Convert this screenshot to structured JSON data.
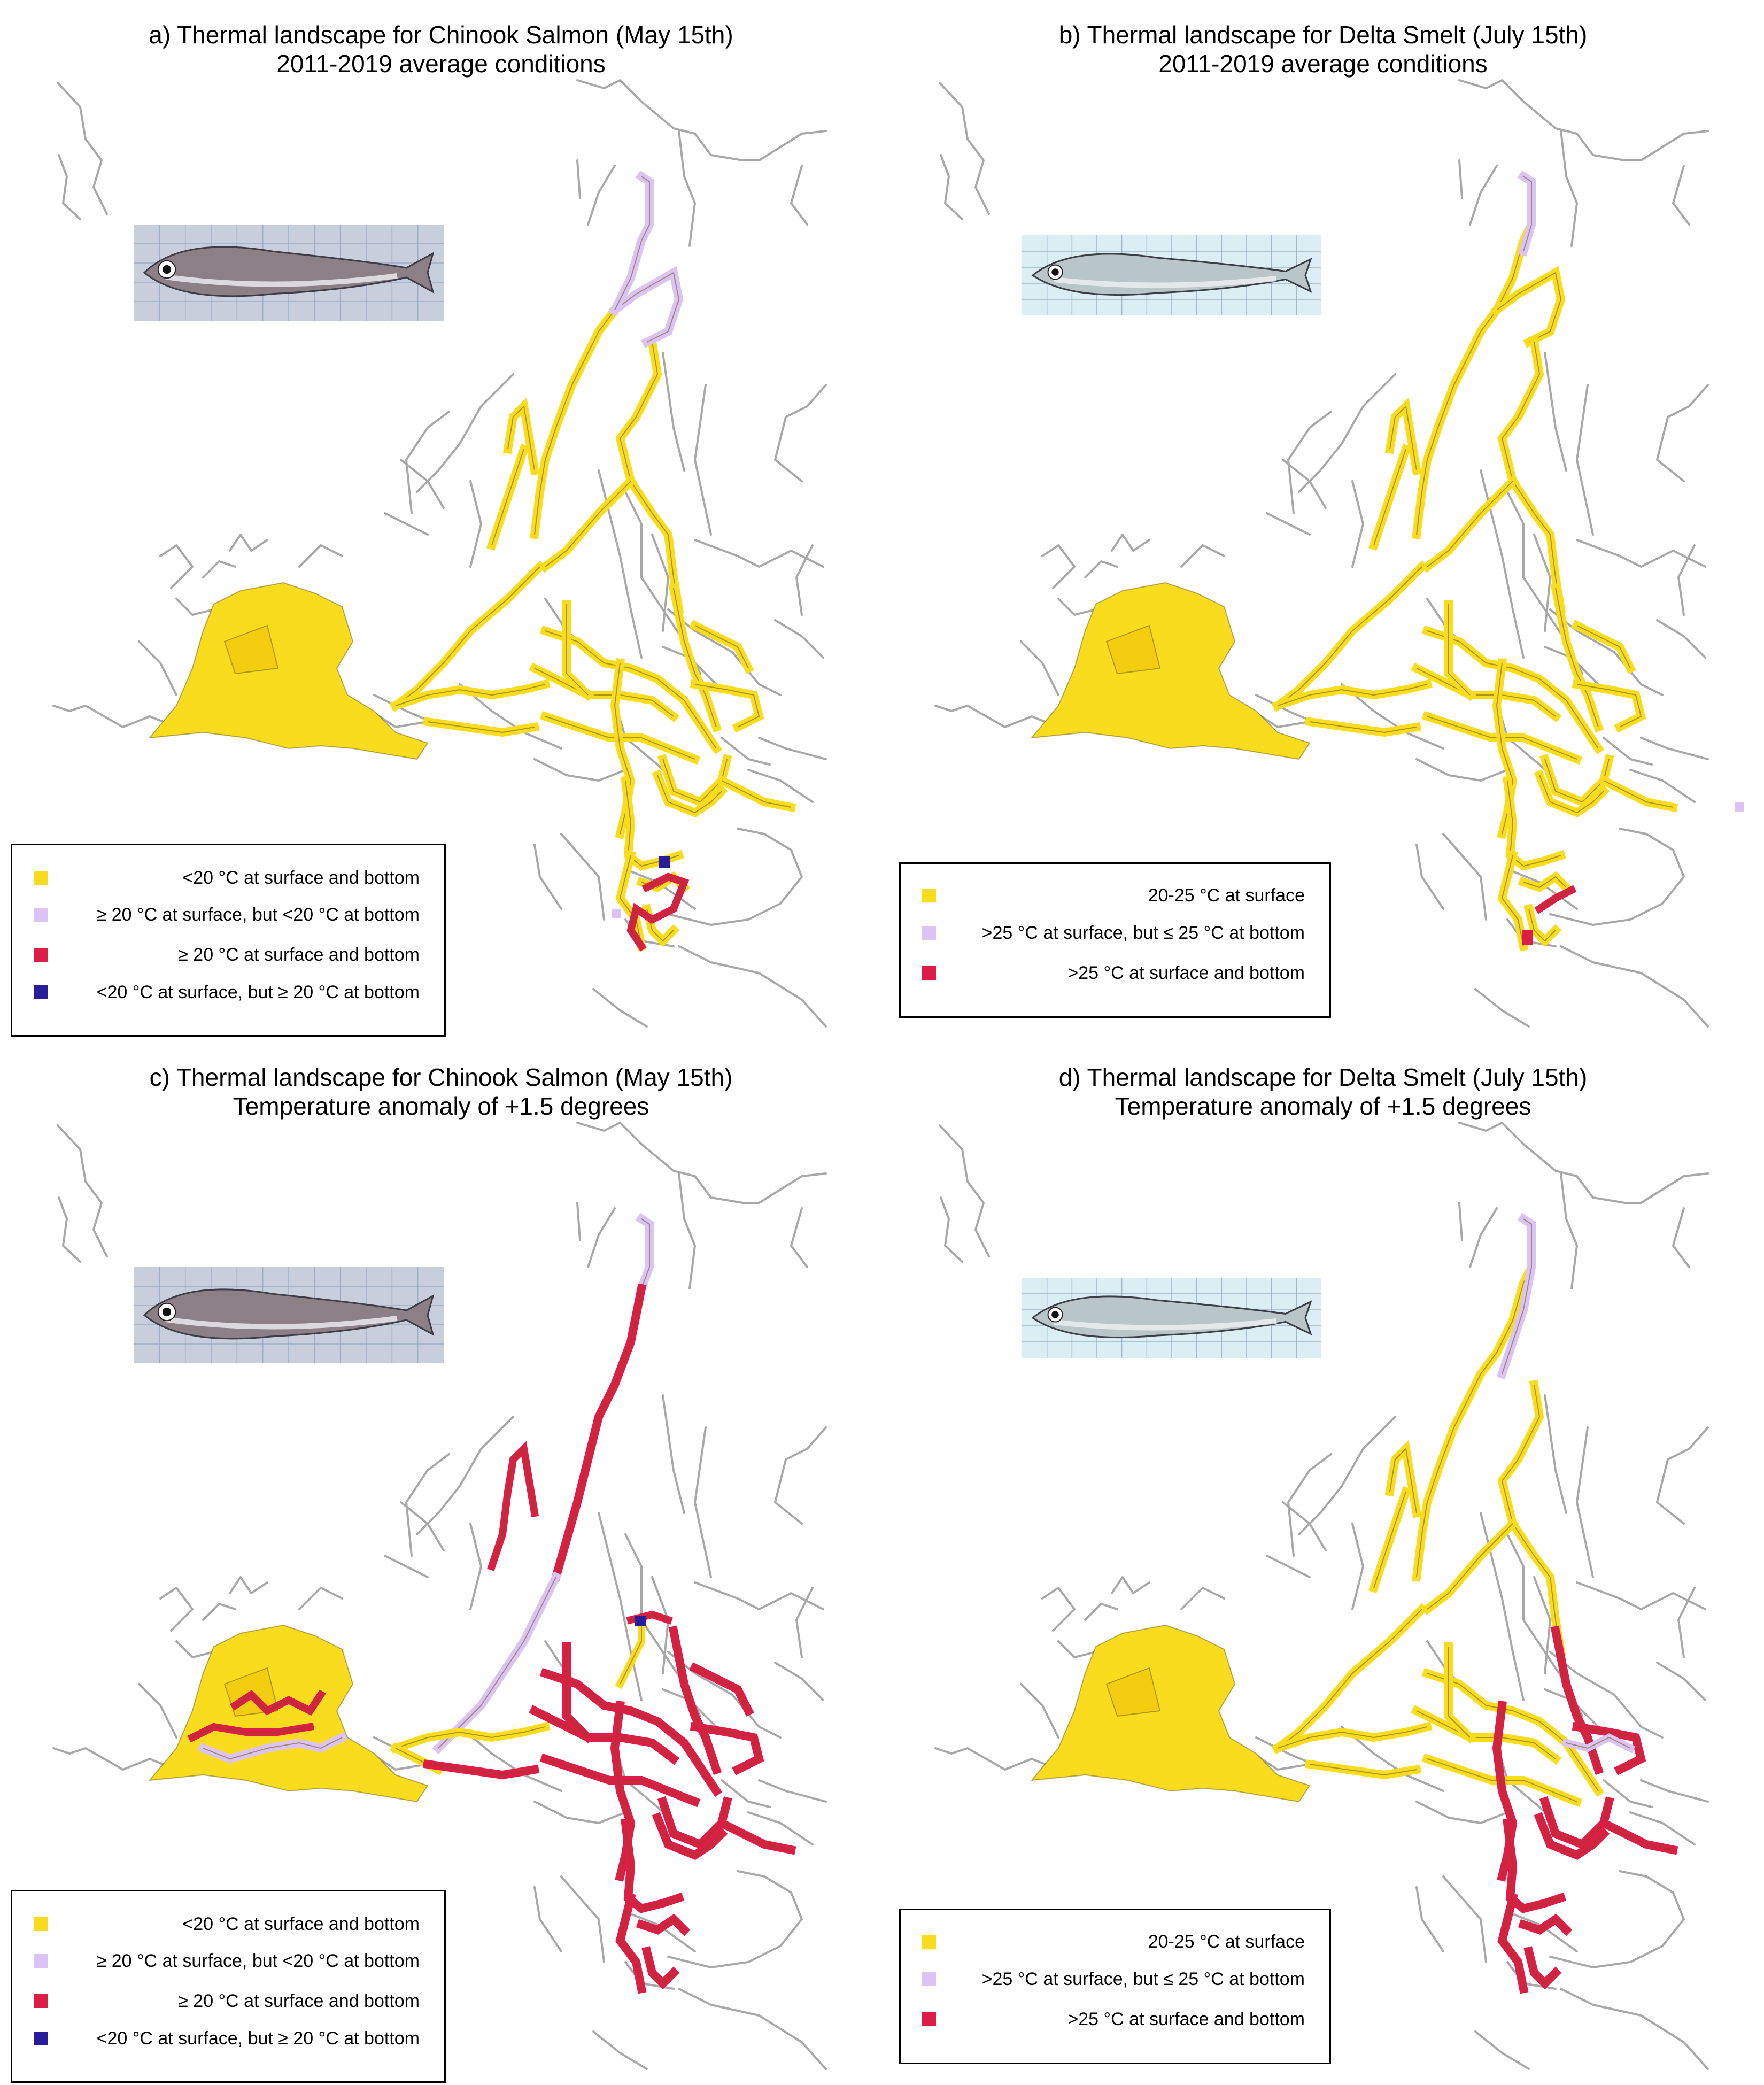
{
  "colors": {
    "yellow": "#fadc1e",
    "lavender": "#dcc3f5",
    "crimson": "#dc1e46",
    "navy": "#281e9b",
    "river": "#a8a8a8",
    "fish_salmon": "#8c7f86",
    "fish_smelt": "#b9c6c9"
  },
  "panels": {
    "a": {
      "title1": "a) Thermal landscape for Chinook Salmon (May 15th)",
      "title2": "2011-2019 average conditions",
      "fish_picture": "chinook-salmon-photo",
      "legend": [
        {
          "color": "yellow",
          "label": "<20 °C at surface and bottom"
        },
        {
          "color": "lavender",
          "label": "≥ 20 °C at surface, but <20 °C at bottom"
        },
        {
          "color": "crimson",
          "label": "≥ 20 °C at surface and bottom"
        },
        {
          "color": "navy",
          "label": "<20 °C at surface, but  ≥ 20 °C at bottom"
        }
      ]
    },
    "b": {
      "title1": "b) Thermal landscape for Delta Smelt (July 15th)",
      "title2": "2011-2019 average conditions",
      "fish_picture": "delta-smelt-photo",
      "legend": [
        {
          "color": "yellow",
          "label": "20-25 °C at surface"
        },
        {
          "color": "lavender",
          "label": ">25 °C at surface, but ≤ 25 °C at bottom"
        },
        {
          "color": "crimson",
          "label": ">25 °C at surface and bottom"
        }
      ]
    },
    "c": {
      "title1": "c) Thermal landscape for Chinook Salmon (May 15th)",
      "title2": "Temperature anomaly of +1.5 degrees",
      "fish_picture": "chinook-salmon-photo",
      "legend": [
        {
          "color": "yellow",
          "label": "<20 °C at surface and bottom"
        },
        {
          "color": "lavender",
          "label": "≥ 20 °C at surface, but <20 °C at bottom"
        },
        {
          "color": "crimson",
          "label": "≥ 20 °C at surface and bottom"
        },
        {
          "color": "navy",
          "label": "<20 °C at surface, but  ≥ 20 °C at bottom"
        }
      ]
    },
    "d": {
      "title1": "d) Thermal landscape for Delta Smelt (July 15th)",
      "title2": "Temperature anomaly of +1.5 degrees",
      "fish_picture": "delta-smelt-photo",
      "legend": [
        {
          "color": "yellow",
          "label": "20-25 °C at surface"
        },
        {
          "color": "lavender",
          "label": ">25 °C at surface, but ≤ 25 °C at bottom"
        },
        {
          "color": "crimson",
          "label": ">25 °C at surface and bottom"
        }
      ]
    }
  }
}
